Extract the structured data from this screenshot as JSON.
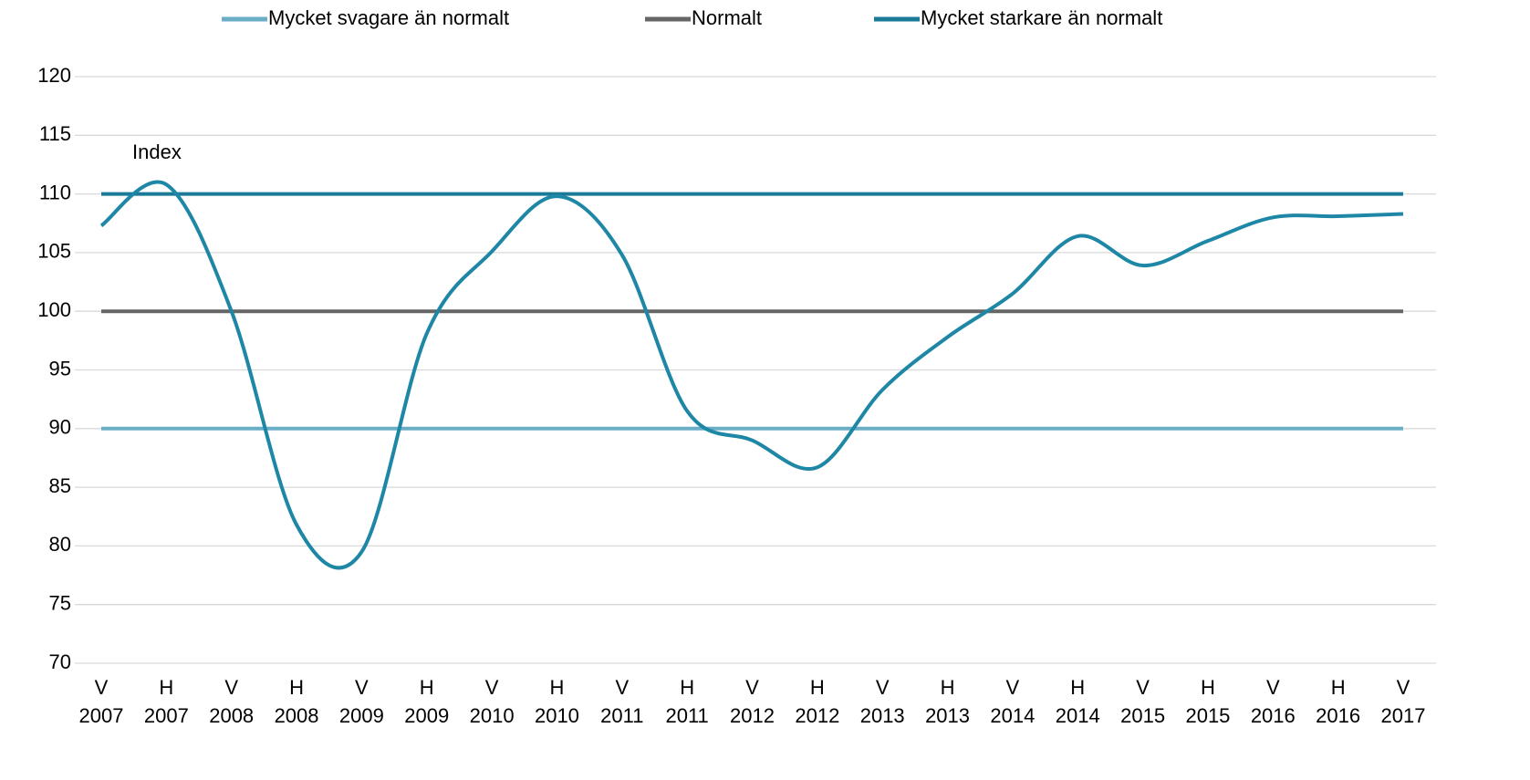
{
  "chart_data": {
    "type": "line",
    "annotation": "Index",
    "categories": [
      [
        "V",
        "2007"
      ],
      [
        "H",
        "2007"
      ],
      [
        "V",
        "2008"
      ],
      [
        "H",
        "2008"
      ],
      [
        "V",
        "2009"
      ],
      [
        "H",
        "2009"
      ],
      [
        "V",
        "2010"
      ],
      [
        "H",
        "2010"
      ],
      [
        "V",
        "2011"
      ],
      [
        "H",
        "2011"
      ],
      [
        "V",
        "2012"
      ],
      [
        "H",
        "2012"
      ],
      [
        "V",
        "2013"
      ],
      [
        "H",
        "2013"
      ],
      [
        "V",
        "2014"
      ],
      [
        "H",
        "2014"
      ],
      [
        "V",
        "2015"
      ],
      [
        "H",
        "2015"
      ],
      [
        "V",
        "2016"
      ],
      [
        "H",
        "2016"
      ],
      [
        "V",
        "2017"
      ]
    ],
    "series": [
      {
        "name": "Mycket svagare än normalt",
        "color": "#6aaec6",
        "values": [
          90,
          90,
          90,
          90,
          90,
          90,
          90,
          90,
          90,
          90,
          90,
          90,
          90,
          90,
          90,
          90,
          90,
          90,
          90,
          90,
          90
        ]
      },
      {
        "name": "Normalt",
        "color": "#666666",
        "values": [
          100,
          100,
          100,
          100,
          100,
          100,
          100,
          100,
          100,
          100,
          100,
          100,
          100,
          100,
          100,
          100,
          100,
          100,
          100,
          100,
          100
        ]
      },
      {
        "name": "Mycket starkare än normalt",
        "color": "#1b7a98",
        "values": [
          110,
          110,
          110,
          110,
          110,
          110,
          110,
          110,
          110,
          110,
          110,
          110,
          110,
          110,
          110,
          110,
          110,
          110,
          110,
          110,
          110
        ]
      },
      {
        "color": "#1e87a6",
        "smooth": true,
        "values": [
          107.3,
          110.8,
          100,
          81.8,
          79.5,
          98.1,
          105.1,
          109.8,
          104.8,
          91.5,
          89,
          86.7,
          93.3,
          97.8,
          101.5,
          106.4,
          103.9,
          106,
          108,
          108.1,
          108.3
        ]
      }
    ],
    "ylim": [
      70,
      120
    ],
    "yticks": [
      70,
      75,
      80,
      85,
      90,
      95,
      100,
      105,
      110,
      115,
      120
    ],
    "grid": true
  }
}
